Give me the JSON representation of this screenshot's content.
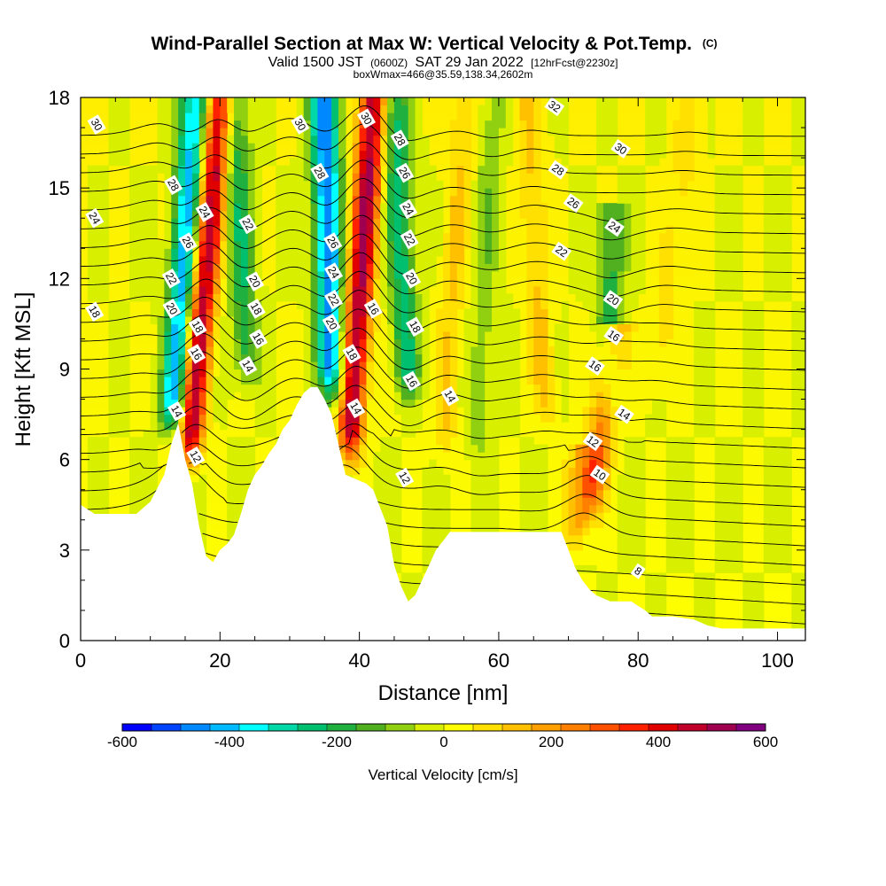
{
  "header": {
    "title": "Wind-Parallel Section at Max W: Vertical Velocity & Pot.Temp.",
    "copyright": "(C)",
    "valid_prefix": "Valid 1500 JST",
    "valid_zulu": "(0600Z)",
    "valid_date": "SAT 29 Jan 2022",
    "forecast": "[12hrFcst@2230z]",
    "box_info": "boxWmax=466@35.59,138.34,2602m"
  },
  "chart_data": {
    "type": "heatmap",
    "xlabel": "Distance [nm]",
    "ylabel": "Height [Kft MSL]",
    "xlim": [
      0,
      104
    ],
    "ylim": [
      0,
      18
    ],
    "x_ticks": [
      0,
      20,
      40,
      60,
      80,
      100
    ],
    "x_tick_labels": [
      "0",
      "20",
      "40",
      "60",
      "80",
      "100"
    ],
    "y_ticks": [
      0,
      3,
      6,
      9,
      12,
      15,
      18
    ],
    "y_tick_labels": [
      "0",
      "3",
      "6",
      "9",
      "12",
      "15",
      "18"
    ],
    "colorbar": {
      "label": "Vertical Velocity [cm/s]",
      "min": -600,
      "max": 600,
      "tick_values": [
        -600,
        -400,
        -200,
        0,
        200,
        400,
        600
      ],
      "tick_labels": [
        "-600",
        "-400",
        "-200",
        "0",
        "200",
        "400",
        "600"
      ],
      "colors": [
        "#0000ff",
        "#0044ff",
        "#0088ff",
        "#00bbff",
        "#00ffff",
        "#00d8a8",
        "#00c070",
        "#20b040",
        "#50b020",
        "#90d010",
        "#d8f000",
        "#ffff00",
        "#ffe000",
        "#ffc000",
        "#ffa000",
        "#ff8000",
        "#ff5000",
        "#ff2000",
        "#e00000",
        "#c0002a",
        "#a00050",
        "#800080"
      ]
    },
    "terrain": [
      [
        0,
        4.5
      ],
      [
        2,
        4.2
      ],
      [
        4,
        4.2
      ],
      [
        6,
        4.2
      ],
      [
        8,
        4.2
      ],
      [
        10,
        4.6
      ],
      [
        12,
        5.5
      ],
      [
        13,
        6.5
      ],
      [
        14,
        7.2
      ],
      [
        15,
        6
      ],
      [
        16,
        5.2
      ],
      [
        17,
        3.8
      ],
      [
        18,
        2.8
      ],
      [
        19,
        2.6
      ],
      [
        20,
        3
      ],
      [
        21,
        3.2
      ],
      [
        22,
        3.5
      ],
      [
        23,
        4.2
      ],
      [
        24,
        5
      ],
      [
        25,
        5.5
      ],
      [
        26,
        5.8
      ],
      [
        27,
        6.2
      ],
      [
        28,
        6.5
      ],
      [
        29,
        7
      ],
      [
        30,
        7.3
      ],
      [
        31,
        7.8
      ],
      [
        32,
        8.2
      ],
      [
        33,
        8.4
      ],
      [
        34,
        8.4
      ],
      [
        35,
        8
      ],
      [
        36,
        7.5
      ],
      [
        37,
        6.5
      ],
      [
        38,
        5.5
      ],
      [
        39,
        5.4
      ],
      [
        40,
        5.3
      ],
      [
        41,
        5.2
      ],
      [
        42,
        5
      ],
      [
        43,
        4.4
      ],
      [
        44,
        3.8
      ],
      [
        45,
        2.5
      ],
      [
        46,
        1.8
      ],
      [
        47,
        1.3
      ],
      [
        48,
        1.5
      ],
      [
        49,
        2
      ],
      [
        50,
        2.5
      ],
      [
        51,
        3
      ],
      [
        52,
        3.3
      ],
      [
        53,
        3.6
      ],
      [
        55,
        3.6
      ],
      [
        60,
        3.6
      ],
      [
        65,
        3.6
      ],
      [
        69,
        3.6
      ],
      [
        70,
        3
      ],
      [
        71,
        2.4
      ],
      [
        72,
        2
      ],
      [
        73,
        1.7
      ],
      [
        74,
        1.5
      ],
      [
        76,
        1.3
      ],
      [
        79,
        1.3
      ],
      [
        81,
        1
      ],
      [
        82,
        0.8
      ],
      [
        85,
        0.8
      ],
      [
        88,
        0.7
      ],
      [
        90,
        0.5
      ],
      [
        92,
        0.4
      ],
      [
        95,
        0.4
      ],
      [
        98,
        0.4
      ],
      [
        104,
        0.4
      ]
    ],
    "updrafts": [
      {
        "x_base": 15.5,
        "y_base": 5.8,
        "x_top": 20,
        "y_top": 18,
        "peak": 480
      },
      {
        "x_base": 38.5,
        "y_base": 6,
        "x_top": 42,
        "y_top": 18,
        "peak": 500
      },
      {
        "x_base": 73,
        "y_base": 4,
        "x_top": 76.5,
        "y_top": 10,
        "peak": 260
      },
      {
        "x_base": 71,
        "y_base": 3,
        "x_top": 72,
        "y_top": 6,
        "peak": 180
      },
      {
        "x_base": 52,
        "y_base": 6,
        "x_top": 55,
        "y_top": 18,
        "peak": 110
      },
      {
        "x_base": 67,
        "y_base": 7,
        "x_top": 64,
        "y_top": 18,
        "peak": 120
      },
      {
        "x_base": 82,
        "y_base": 8,
        "x_top": 88,
        "y_top": 18,
        "peak": 80
      }
    ],
    "downdrafts": [
      {
        "x_base": 13,
        "y_base": 7,
        "x_top": 16.5,
        "y_top": 18,
        "peak": -420
      },
      {
        "x_base": 36,
        "y_base": 8,
        "x_top": 35,
        "y_top": 18,
        "peak": -480
      },
      {
        "x_base": 47,
        "y_base": 8,
        "x_top": 45,
        "y_top": 18,
        "peak": -250
      },
      {
        "x_base": 24,
        "y_base": 8.5,
        "x_top": 22,
        "y_top": 18,
        "peak": -210
      },
      {
        "x_base": 76,
        "y_base": 7.5,
        "x_top": 76,
        "y_top": 14,
        "peak": -190
      },
      {
        "x_base": 57,
        "y_base": 6,
        "x_top": 59,
        "y_top": 18,
        "peak": -90
      }
    ],
    "theta_contours": [
      {
        "value": "8",
        "x": 80,
        "y": 2.3
      },
      {
        "value": "10",
        "x": 74.5,
        "y": 5.5
      },
      {
        "value": "12",
        "x": 16.5,
        "y": 6.1
      },
      {
        "value": "12",
        "x": 46.5,
        "y": 5.4
      },
      {
        "value": "12",
        "x": 73.5,
        "y": 6.6
      },
      {
        "value": "14",
        "x": 13.8,
        "y": 7.6
      },
      {
        "value": "14",
        "x": 39.5,
        "y": 7.7
      },
      {
        "value": "14",
        "x": 53,
        "y": 8.1
      },
      {
        "value": "14",
        "x": 78,
        "y": 7.5
      },
      {
        "value": "14",
        "x": 24,
        "y": 9.1
      },
      {
        "value": "16",
        "x": 25.5,
        "y": 10
      },
      {
        "value": "16",
        "x": 16.6,
        "y": 9.5
      },
      {
        "value": "16",
        "x": 47.5,
        "y": 8.6
      },
      {
        "value": "16",
        "x": 42,
        "y": 11
      },
      {
        "value": "16",
        "x": 73.8,
        "y": 9.1
      },
      {
        "value": "16",
        "x": 76.5,
        "y": 10.1
      },
      {
        "value": "18",
        "x": 2,
        "y": 10.9
      },
      {
        "value": "18",
        "x": 16.8,
        "y": 10.4
      },
      {
        "value": "18",
        "x": 25.2,
        "y": 11
      },
      {
        "value": "18",
        "x": 38.9,
        "y": 9.5
      },
      {
        "value": "18",
        "x": 48,
        "y": 10.4
      },
      {
        "value": "20",
        "x": 13.1,
        "y": 11
      },
      {
        "value": "20",
        "x": 25,
        "y": 11.9
      },
      {
        "value": "20",
        "x": 36,
        "y": 10.5
      },
      {
        "value": "20",
        "x": 47.5,
        "y": 12
      },
      {
        "value": "20",
        "x": 76.4,
        "y": 11.3
      },
      {
        "value": "22",
        "x": 13,
        "y": 12
      },
      {
        "value": "22",
        "x": 24,
        "y": 13.8
      },
      {
        "value": "22",
        "x": 36.3,
        "y": 11.3
      },
      {
        "value": "22",
        "x": 47.2,
        "y": 13.3
      },
      {
        "value": "22",
        "x": 69,
        "y": 12.9
      },
      {
        "value": "24",
        "x": 2,
        "y": 14
      },
      {
        "value": "24",
        "x": 17.8,
        "y": 14.2
      },
      {
        "value": "24",
        "x": 36.3,
        "y": 12.2
      },
      {
        "value": "24",
        "x": 47,
        "y": 14.3
      },
      {
        "value": "24",
        "x": 76.6,
        "y": 13.7
      },
      {
        "value": "26",
        "x": 15.4,
        "y": 13.2
      },
      {
        "value": "26",
        "x": 36.2,
        "y": 13.2
      },
      {
        "value": "26",
        "x": 46.5,
        "y": 15.5
      },
      {
        "value": "26",
        "x": 70.7,
        "y": 14.5
      },
      {
        "value": "28",
        "x": 13.3,
        "y": 15.1
      },
      {
        "value": "28",
        "x": 34.3,
        "y": 15.5
      },
      {
        "value": "28",
        "x": 45.8,
        "y": 16.6
      },
      {
        "value": "28",
        "x": 68.5,
        "y": 15.6
      },
      {
        "value": "30",
        "x": 2.3,
        "y": 17.1
      },
      {
        "value": "30",
        "x": 31.5,
        "y": 17.1
      },
      {
        "value": "30",
        "x": 41,
        "y": 17.3
      },
      {
        "value": "30",
        "x": 77.5,
        "y": 16.3
      },
      {
        "value": "32",
        "x": 68,
        "y": 17.7
      }
    ]
  }
}
